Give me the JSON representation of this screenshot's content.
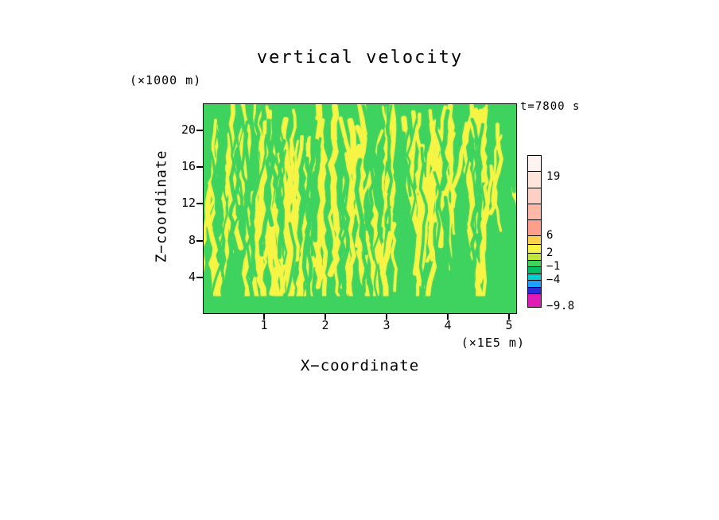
{
  "chart_data": {
    "type": "heatmap",
    "title": "vertical velocity",
    "time_label": "t=7800 s",
    "xlabel": "X−coordinate",
    "ylabel": "Z−coordinate",
    "x_unit_label": "(×1E5 m)",
    "y_unit_label": "(×1000 m)",
    "x_ticks": [
      1,
      2,
      3,
      4,
      5
    ],
    "y_ticks": [
      4,
      8,
      12,
      16,
      20
    ],
    "xlim": [
      0,
      5.13
    ],
    "ylim": [
      0,
      22.8
    ],
    "grid": false,
    "legend_position": "right-colorbar",
    "field_description": "2D cross-section of vertical velocity: mostly green cells (≈ −1 to 2) laced with dense wavy vertical yellow streaks (≈ 2 to 6); solid green band along the bottom boundary",
    "field_pattern": {
      "background_color": "#3ed35f",
      "streak_color": "#f6f545",
      "yellow_streak_count": 100,
      "green_streak_count": 55,
      "seed": 12,
      "bottom_band_fraction": 0.085
    },
    "colorbar": {
      "range": [
        -9.8,
        23.8
      ],
      "tick_labels": [
        {
          "text": "19",
          "value": 19
        },
        {
          "text": "6",
          "value": 6
        },
        {
          "text": "2",
          "value": 2
        },
        {
          "text": "−1",
          "value": -1
        },
        {
          "text": "−4",
          "value": -4
        },
        {
          "text": "−9.8",
          "value": -9.8
        }
      ],
      "segments": [
        {
          "color": "#e01ab4",
          "from": -9.8,
          "to": -7.0
        },
        {
          "color": "#2b2bd9",
          "from": -7.0,
          "to": -5.5
        },
        {
          "color": "#1ea0ff",
          "from": -5.5,
          "to": -4.0
        },
        {
          "color": "#00cfd2",
          "from": -4.0,
          "to": -2.5
        },
        {
          "color": "#00c063",
          "from": -2.5,
          "to": -1.0
        },
        {
          "color": "#3ed35f",
          "from": -1.0,
          "to": 0.5
        },
        {
          "color": "#bfe53a",
          "from": 0.5,
          "to": 2.0
        },
        {
          "color": "#f6f545",
          "from": 2.0,
          "to": 4.0
        },
        {
          "color": "#ffd24d",
          "from": 4.0,
          "to": 6.0
        },
        {
          "color": "#ff9e8a",
          "from": 6.0,
          "to": 9.5
        },
        {
          "color": "#ffb7a6",
          "from": 9.5,
          "to": 13.0
        },
        {
          "color": "#ffcfc3",
          "from": 13.0,
          "to": 16.5
        },
        {
          "color": "#ffe4dc",
          "from": 16.5,
          "to": 20.2
        },
        {
          "color": "#fdf4f1",
          "from": 20.2,
          "to": 23.8
        }
      ]
    }
  }
}
